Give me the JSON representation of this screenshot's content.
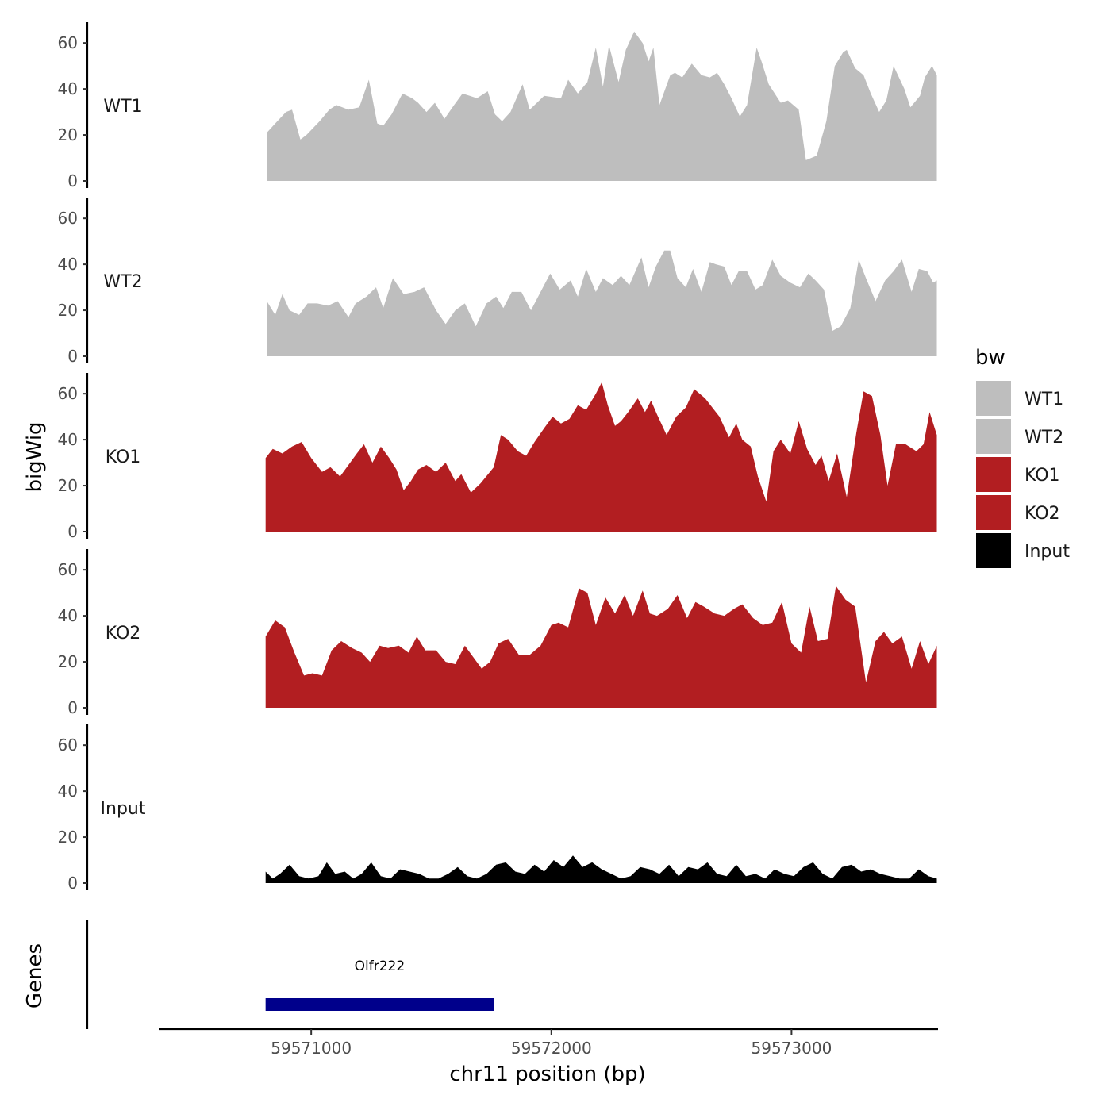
{
  "chart_data": {
    "type": "area",
    "ylabel": "bigWig",
    "xlabel": "chr11 position (bp)",
    "ylim": [
      0,
      68
    ],
    "y_ticks": [
      0,
      20,
      40,
      60
    ],
    "xlim": [
      59570365,
      59573610
    ],
    "x_ticks": [
      {
        "value": 59571000,
        "label": "59571000"
      },
      {
        "value": 59572000,
        "label": "59572000"
      },
      {
        "value": 59573000,
        "label": "59573000"
      }
    ],
    "legend": {
      "title": "bw",
      "placement": "right"
    },
    "series": [
      {
        "name": "WT1",
        "color": "#bebebe",
        "x": [
          59570815,
          59570850,
          59570895,
          59570920,
          59570955,
          59570980,
          59571035,
          59571075,
          59571105,
          59571155,
          59571200,
          59571240,
          59571275,
          59571300,
          59571335,
          59571380,
          59571420,
          59571445,
          59571480,
          59571515,
          59571555,
          59571595,
          59571630,
          59571660,
          59571690,
          59571735,
          59571765,
          59571795,
          59571830,
          59571880,
          59571910,
          59571970,
          59572040,
          59572070,
          59572110,
          59572150,
          59572185,
          59572215,
          59572240,
          59572280,
          59572310,
          59572345,
          59572380,
          59572405,
          59572425,
          59572450,
          59572495,
          59572515,
          59572545,
          59572585,
          59572625,
          59572660,
          59572690,
          59572720,
          59572750,
          59572785,
          59572815,
          59572855,
          59572875,
          59572905,
          59572955,
          59572985,
          59573030,
          59573060,
          59573105,
          59573145,
          59573180,
          59573215,
          59573230,
          59573265,
          59573300,
          59573330,
          59573365,
          59573395,
          59573425,
          59573470,
          59573495,
          59573535,
          59573555,
          59573585,
          59573605
        ],
        "y": [
          21,
          25,
          30,
          31,
          18,
          20,
          26,
          31,
          33,
          31,
          32,
          44,
          25,
          24,
          29,
          38,
          36,
          34,
          30,
          34,
          27,
          33,
          38,
          37,
          36,
          39,
          29,
          26,
          30,
          42,
          31,
          37,
          36,
          44,
          38,
          43,
          58,
          41,
          59,
          43,
          57,
          65,
          60,
          52,
          58,
          33,
          46,
          47,
          45,
          51,
          46,
          45,
          47,
          42,
          36,
          28,
          33,
          58,
          52,
          42,
          34,
          35,
          31,
          9,
          11,
          26,
          50,
          56,
          57,
          49,
          46,
          38,
          30,
          35,
          50,
          40,
          32,
          37,
          45,
          50,
          46
        ]
      },
      {
        "name": "WT2",
        "color": "#bebebe",
        "x": [
          59570815,
          59570850,
          59570880,
          59570910,
          59570950,
          59570985,
          59571025,
          59571070,
          59571110,
          59571155,
          59571185,
          59571230,
          59571270,
          59571300,
          59571340,
          59571385,
          59571430,
          59571470,
          59571520,
          59571560,
          59571600,
          59571640,
          59571685,
          59571730,
          59571770,
          59571800,
          59571835,
          59571875,
          59571915,
          59571955,
          59571995,
          59572035,
          59572080,
          59572110,
          59572145,
          59572185,
          59572215,
          59572255,
          59572290,
          59572325,
          59572375,
          59572405,
          59572435,
          59572470,
          59572495,
          59572525,
          59572560,
          59572590,
          59572625,
          59572660,
          59572685,
          59572720,
          59572750,
          59572780,
          59572815,
          59572850,
          59572880,
          59572920,
          59572955,
          59572995,
          59573035,
          59573070,
          59573100,
          59573135,
          59573170,
          59573205,
          59573245,
          59573280,
          59573310,
          59573350,
          59573390,
          59573425,
          59573460,
          59573500,
          59573530,
          59573565,
          59573590,
          59573605
        ],
        "y": [
          24,
          18,
          27,
          20,
          18,
          23,
          23,
          22,
          24,
          17,
          23,
          26,
          30,
          21,
          34,
          27,
          28,
          30,
          20,
          14,
          20,
          23,
          13,
          23,
          26,
          21,
          28,
          28,
          20,
          28,
          36,
          29,
          33,
          26,
          38,
          28,
          34,
          31,
          35,
          31,
          43,
          30,
          39,
          46,
          46,
          34,
          30,
          38,
          28,
          41,
          40,
          39,
          31,
          37,
          37,
          29,
          31,
          42,
          35,
          32,
          30,
          36,
          33,
          29,
          11,
          13,
          21,
          42,
          34,
          24,
          33,
          37,
          42,
          28,
          38,
          37,
          32,
          33
        ]
      },
      {
        "name": "KO1",
        "color": "#b21e21",
        "x": [
          59570810,
          59570840,
          59570880,
          59570920,
          59570960,
          59571000,
          59571045,
          59571080,
          59571120,
          59571155,
          59571190,
          59571220,
          59571255,
          59571290,
          59571325,
          59571355,
          59571385,
          59571415,
          59571445,
          59571480,
          59571520,
          59571560,
          59571600,
          59571625,
          59571665,
          59571705,
          59571760,
          59571790,
          59571820,
          59571860,
          59571895,
          59571930,
          59571970,
          59572005,
          59572040,
          59572075,
          59572110,
          59572145,
          59572185,
          59572210,
          59572235,
          59572265,
          59572290,
          59572320,
          59572360,
          59572390,
          59572415,
          59572440,
          59572480,
          59572520,
          59572560,
          59572595,
          59572640,
          59572700,
          59572740,
          59572770,
          59572795,
          59572830,
          59572860,
          59572895,
          59572925,
          59572955,
          59572995,
          59573030,
          59573065,
          59573100,
          59573125,
          59573155,
          59573190,
          59573230,
          59573270,
          59573300,
          59573335,
          59573370,
          59573400,
          59573435,
          59573475,
          59573520,
          59573550,
          59573575,
          59573605
        ],
        "y": [
          32,
          36,
          34,
          37,
          39,
          32,
          26,
          28,
          24,
          29,
          34,
          38,
          30,
          37,
          32,
          27,
          18,
          22,
          27,
          29,
          26,
          30,
          22,
          25,
          17,
          21,
          28,
          42,
          40,
          35,
          33,
          39,
          45,
          50,
          47,
          49,
          55,
          53,
          60,
          65,
          55,
          46,
          48,
          52,
          58,
          52,
          57,
          51,
          42,
          50,
          54,
          62,
          58,
          50,
          41,
          47,
          40,
          37,
          24,
          13,
          35,
          40,
          34,
          48,
          36,
          29,
          33,
          22,
          34,
          15,
          43,
          61,
          59,
          42,
          20,
          38,
          38,
          35,
          38,
          52,
          42
        ]
      },
      {
        "name": "KO2",
        "color": "#b21e21",
        "x": [
          59570810,
          59570850,
          59570890,
          59570930,
          59570970,
          59571005,
          59571045,
          59571085,
          59571125,
          59571170,
          59571210,
          59571245,
          59571285,
          59571320,
          59571365,
          59571405,
          59571440,
          59571475,
          59571520,
          59571560,
          59571600,
          59571640,
          59571675,
          59571710,
          59571745,
          59571780,
          59571820,
          59571865,
          59571910,
          59571955,
          59572000,
          59572030,
          59572070,
          59572115,
          59572150,
          59572185,
          59572225,
          59572265,
          59572305,
          59572340,
          59572380,
          59572410,
          59572440,
          59572485,
          59572525,
          59572565,
          59572600,
          59572635,
          59572680,
          59572720,
          59572760,
          59572795,
          59572840,
          59572880,
          59572920,
          59572960,
          59573000,
          59573040,
          59573075,
          59573110,
          59573150,
          59573185,
          59573225,
          59573265,
          59573310,
          59573350,
          59573385,
          59573420,
          59573460,
          59573500,
          59573535,
          59573570,
          59573605
        ],
        "y": [
          31,
          38,
          35,
          24,
          14,
          15,
          14,
          25,
          29,
          26,
          24,
          20,
          27,
          26,
          27,
          24,
          31,
          25,
          25,
          20,
          19,
          27,
          22,
          17,
          20,
          28,
          30,
          23,
          23,
          27,
          36,
          37,
          35,
          52,
          50,
          36,
          48,
          41,
          49,
          40,
          51,
          41,
          40,
          43,
          49,
          39,
          46,
          44,
          41,
          40,
          43,
          45,
          39,
          36,
          37,
          46,
          28,
          24,
          44,
          29,
          30,
          53,
          47,
          44,
          11,
          29,
          33,
          28,
          31,
          17,
          29,
          19,
          27
        ]
      },
      {
        "name": "Input",
        "color": "#000000",
        "x": [
          59570810,
          59570840,
          59570870,
          59570910,
          59570950,
          59570990,
          59571030,
          59571065,
          59571100,
          59571140,
          59571175,
          59571210,
          59571250,
          59571290,
          59571330,
          59571370,
          59571410,
          59571450,
          59571490,
          59571530,
          59571570,
          59571610,
          59571650,
          59571690,
          59571730,
          59571770,
          59571810,
          59571850,
          59571890,
          59571930,
          59571970,
          59572010,
          59572050,
          59572090,
          59572130,
          59572170,
          59572210,
          59572250,
          59572290,
          59572330,
          59572370,
          59572410,
          59572450,
          59572490,
          59572530,
          59572570,
          59572610,
          59572650,
          59572690,
          59572730,
          59572770,
          59572810,
          59572850,
          59572890,
          59572930,
          59572970,
          59573010,
          59573050,
          59573090,
          59573130,
          59573170,
          59573210,
          59573250,
          59573290,
          59573330,
          59573370,
          59573410,
          59573450,
          59573490,
          59573530,
          59573570,
          59573605
        ],
        "y": [
          5,
          2,
          4,
          8,
          3,
          2,
          3,
          9,
          4,
          5,
          2,
          4,
          9,
          3,
          2,
          6,
          5,
          4,
          2,
          2,
          4,
          7,
          3,
          2,
          4,
          8,
          9,
          5,
          4,
          8,
          5,
          10,
          7,
          12,
          7,
          9,
          6,
          4,
          2,
          3,
          7,
          6,
          4,
          8,
          3,
          7,
          6,
          9,
          4,
          3,
          8,
          3,
          4,
          2,
          6,
          4,
          3,
          7,
          9,
          4,
          2,
          7,
          8,
          5,
          6,
          4,
          3,
          2,
          2,
          6,
          3,
          2
        ]
      }
    ],
    "genes": [
      {
        "name": "Olfr222",
        "start": 59570810,
        "end": 59571760,
        "color": "#00008b"
      }
    ],
    "gene_track_label": "Genes"
  }
}
